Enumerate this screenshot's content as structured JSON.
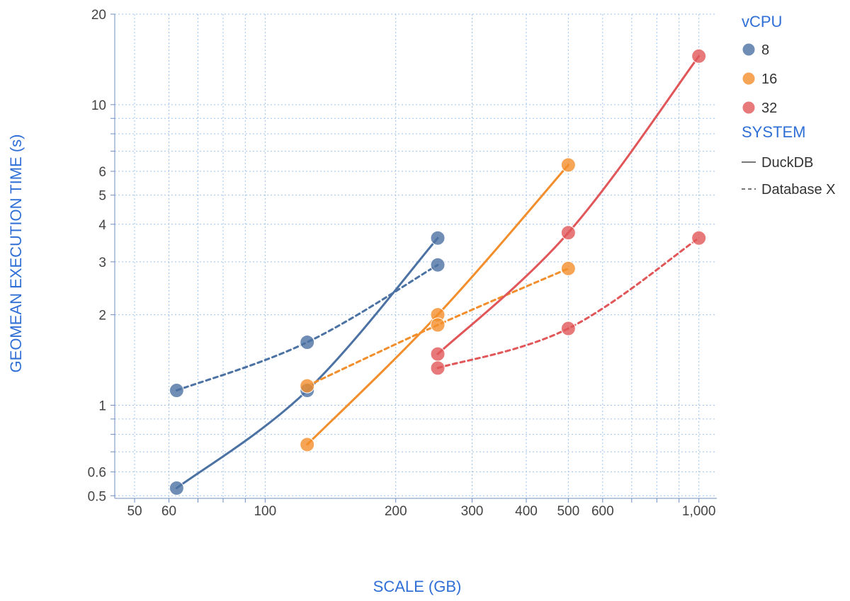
{
  "chart_data": {
    "type": "scatter",
    "xlabel": "SCALE (GB)",
    "ylabel": "GEOMEAN EXECUTION TIME (s)",
    "x_scale": "log",
    "y_scale": "log",
    "xlim": [
      45,
      1100
    ],
    "ylim": [
      0.49,
      20
    ],
    "x_ticks": [
      50,
      60,
      100,
      200,
      300,
      400,
      500,
      600,
      1000
    ],
    "x_tick_labels": [
      "50",
      "60",
      "100",
      "200",
      "300",
      "400",
      "500",
      "600",
      "1,000"
    ],
    "y_ticks": [
      0.5,
      0.6,
      1,
      2,
      3,
      4,
      5,
      6,
      10,
      20
    ],
    "y_tick_labels": [
      "0.5",
      "0.6",
      "1",
      "2",
      "3",
      "4",
      "5",
      "6",
      "10",
      "20"
    ],
    "grid": true,
    "legend_placement": "top-right",
    "legend": {
      "color_title": "vCPU",
      "color_entries": [
        "8",
        "16",
        "32"
      ],
      "style_title": "SYSTEM",
      "style_entries": [
        {
          "label": "DuckDB",
          "dash": "solid"
        },
        {
          "label": "Database X",
          "dash": "dashed"
        }
      ]
    },
    "colors": {
      "8": "#4c72a3",
      "16": "#f28e2b",
      "32": "#e15759",
      "axis_text": "#2f6fd6",
      "grid": "#9ec3ee"
    },
    "series": [
      {
        "name": "8",
        "system": "DuckDB",
        "x": [
          62.5,
          125,
          250
        ],
        "y": [
          0.53,
          1.12,
          3.6
        ]
      },
      {
        "name": "8",
        "system": "Database X",
        "x": [
          62.5,
          125,
          250
        ],
        "y": [
          1.12,
          1.62,
          2.93
        ]
      },
      {
        "name": "16",
        "system": "DuckDB",
        "x": [
          125,
          250,
          500
        ],
        "y": [
          0.74,
          2.0,
          6.3
        ]
      },
      {
        "name": "16",
        "system": "Database X",
        "x": [
          125,
          250,
          500
        ],
        "y": [
          1.16,
          1.85,
          2.85
        ]
      },
      {
        "name": "32",
        "system": "DuckDB",
        "x": [
          250,
          500,
          1000
        ],
        "y": [
          1.48,
          3.75,
          14.5
        ]
      },
      {
        "name": "32",
        "system": "Database X",
        "x": [
          250,
          500,
          1000
        ],
        "y": [
          1.33,
          1.8,
          3.6
        ]
      }
    ]
  }
}
